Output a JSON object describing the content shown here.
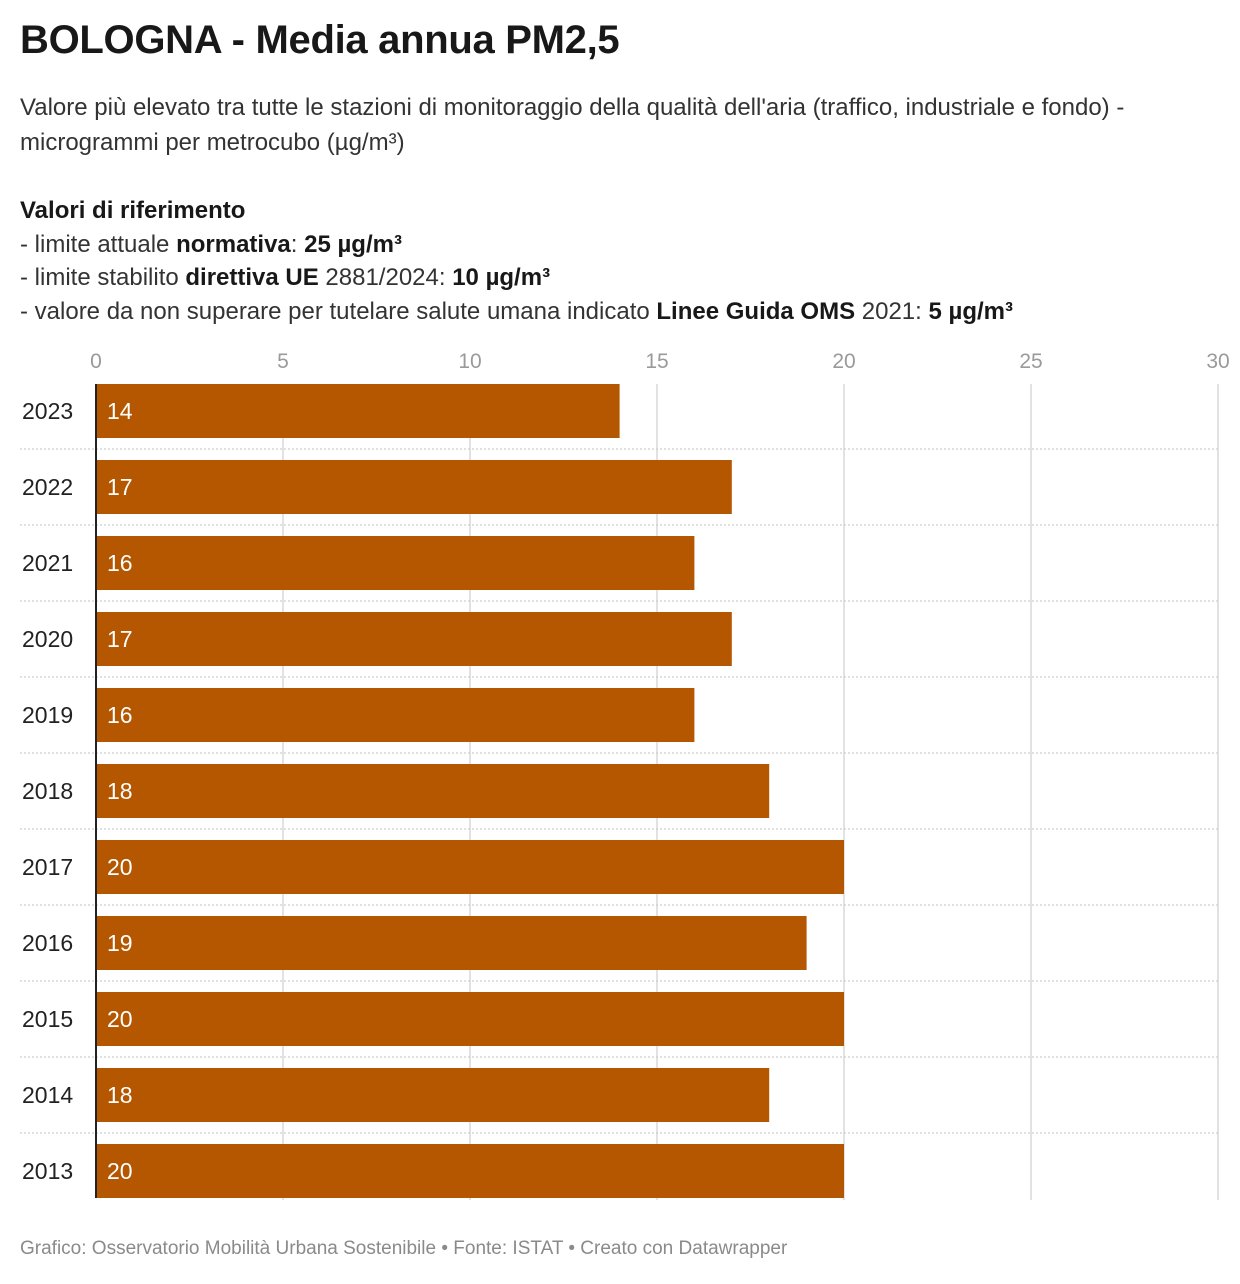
{
  "title": "BOLOGNA - Media annua PM2,5",
  "subtitle": "Valore più elevato tra tutte le stazioni di monitoraggio della qualità dell'aria (traffico, industriale e fondo) - microgrammi per metrocubo (µg/m³)",
  "references": {
    "heading": "Valori di riferimento",
    "lines": [
      {
        "before": "- limite attuale ",
        "bold1": "normativa",
        "middle": ": ",
        "bold2": "25 µg/m³"
      },
      {
        "before": "- limite stabilito ",
        "bold1": "direttiva UE",
        "middle": " 2881/2024: ",
        "bold2": "10 µg/m³"
      },
      {
        "before": "- valore da non superare per tutelare salute umana indicato ",
        "bold1": "Linee Guida OMS",
        "middle": " 2021: ",
        "bold2": "5 µg/m³"
      }
    ]
  },
  "footer": "Grafico: Osservatorio Mobilità Urbana Sostenibile • Fonte: ISTAT • Creato con Datawrapper",
  "colors": {
    "bar": "#b55700",
    "grid": "#d9d9d9",
    "tick": "#9a9a9a"
  },
  "chart_data": {
    "type": "bar",
    "orientation": "horizontal",
    "categories": [
      "2023",
      "2022",
      "2021",
      "2020",
      "2019",
      "2018",
      "2017",
      "2016",
      "2015",
      "2014",
      "2013"
    ],
    "values": [
      14,
      17,
      16,
      17,
      16,
      18,
      20,
      19,
      20,
      18,
      20
    ],
    "xlim": [
      0,
      30
    ],
    "xticks": [
      0,
      5,
      10,
      15,
      20,
      25,
      30
    ],
    "grid": true,
    "data_labels": true
  }
}
